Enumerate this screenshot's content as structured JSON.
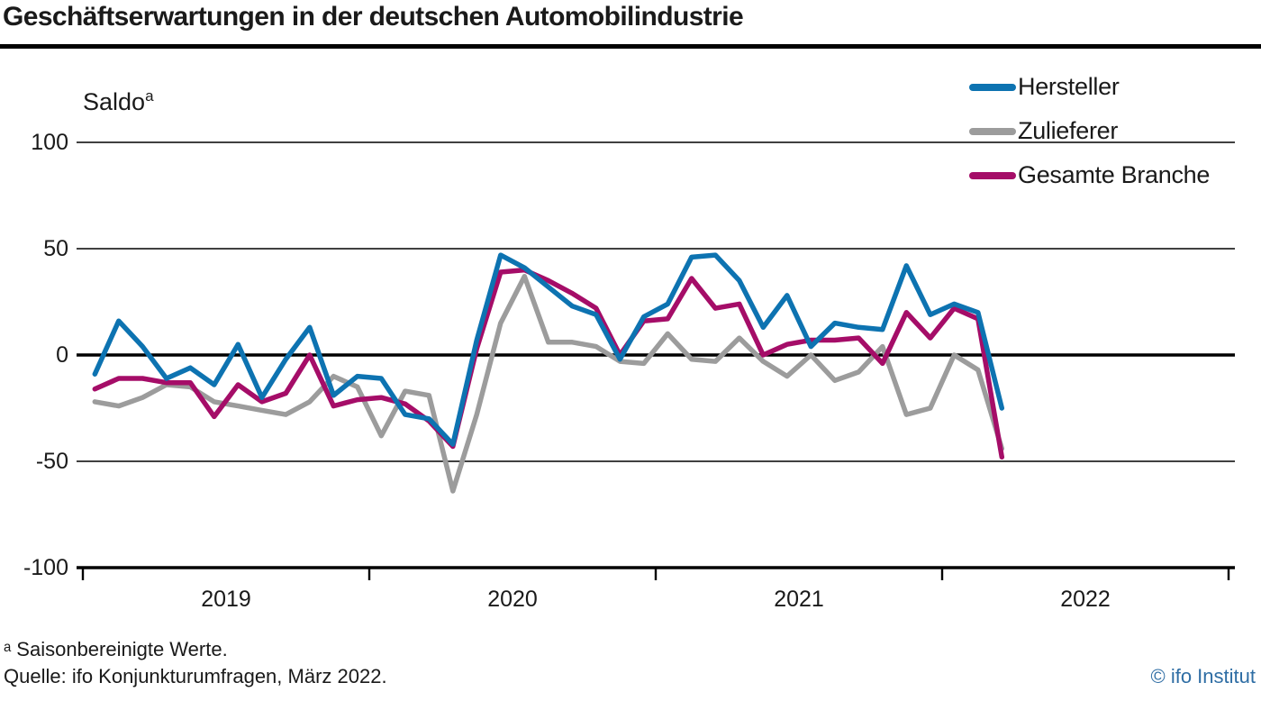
{
  "title": "Geschäftserwartungen in der deutschen Automobilindustrie",
  "y_axis_label": "Saldo",
  "y_axis_label_sup": "a",
  "footnote": "ᵃ Saisonbereinigte Werte.",
  "source": "Quelle: ifo Konjunkturumfragen, März 2022.",
  "copyright": "© ifo Institut",
  "colors": {
    "text": "#1a1a1a",
    "axis": "#000000",
    "ifo_blue": "#2e6da4"
  },
  "chart_data": {
    "type": "line",
    "title": "Geschäftserwartungen in der deutschen Automobilindustrie",
    "ylabel": "Saldo (saisonbereinigte Werte)",
    "xlabel": "",
    "ylim": [
      -100,
      100
    ],
    "yticks": [
      100,
      50,
      0,
      -50,
      -100
    ],
    "xticks_years": [
      "2019",
      "2020",
      "2021",
      "2022"
    ],
    "year_tick_months": [
      0,
      12,
      24,
      36,
      48
    ],
    "grid": "horizontal",
    "legend_position": "top-right",
    "x": [
      "2019-01",
      "2019-02",
      "2019-03",
      "2019-04",
      "2019-05",
      "2019-06",
      "2019-07",
      "2019-08",
      "2019-09",
      "2019-10",
      "2019-11",
      "2019-12",
      "2020-01",
      "2020-02",
      "2020-03",
      "2020-04",
      "2020-05",
      "2020-06",
      "2020-07",
      "2020-08",
      "2020-09",
      "2020-10",
      "2020-11",
      "2020-12",
      "2021-01",
      "2021-02",
      "2021-03",
      "2021-04",
      "2021-05",
      "2021-06",
      "2021-07",
      "2021-08",
      "2021-09",
      "2021-10",
      "2021-11",
      "2021-12",
      "2022-01",
      "2022-02",
      "2022-03"
    ],
    "series": [
      {
        "name": "Hersteller",
        "color": "#0d73b1",
        "values": [
          -9,
          16,
          4,
          -11,
          -6,
          -14,
          5,
          -20,
          -2,
          13,
          -19,
          -10,
          -11,
          -28,
          -30,
          -42,
          7,
          47,
          41,
          32,
          23,
          19,
          -2,
          18,
          24,
          46,
          47,
          35,
          13,
          28,
          4,
          15,
          13,
          12,
          42,
          19,
          24,
          20,
          -25
        ]
      },
      {
        "name": "Zulieferer",
        "color": "#9c9c9c",
        "values": [
          -22,
          -24,
          -20,
          -14,
          -15,
          -22,
          -24,
          -26,
          -28,
          -22,
          -10,
          -15,
          -38,
          -17,
          -19,
          -64,
          -28,
          15,
          37,
          6,
          6,
          4,
          -3,
          -4,
          10,
          -2,
          -3,
          8,
          -3,
          -10,
          0,
          -12,
          -8,
          4,
          -28,
          -25,
          0,
          -7,
          -44
        ]
      },
      {
        "name": "Gesamte Branche",
        "color": "#a50d68",
        "values": [
          -16,
          -11,
          -11,
          -13,
          -13,
          -29,
          -14,
          -22,
          -18,
          0,
          -24,
          -21,
          -20,
          -23,
          -31,
          -43,
          3,
          39,
          40,
          35,
          29,
          22,
          0,
          16,
          17,
          36,
          22,
          24,
          0,
          5,
          7,
          7,
          8,
          -4,
          20,
          8,
          22,
          17,
          -48
        ]
      }
    ]
  }
}
